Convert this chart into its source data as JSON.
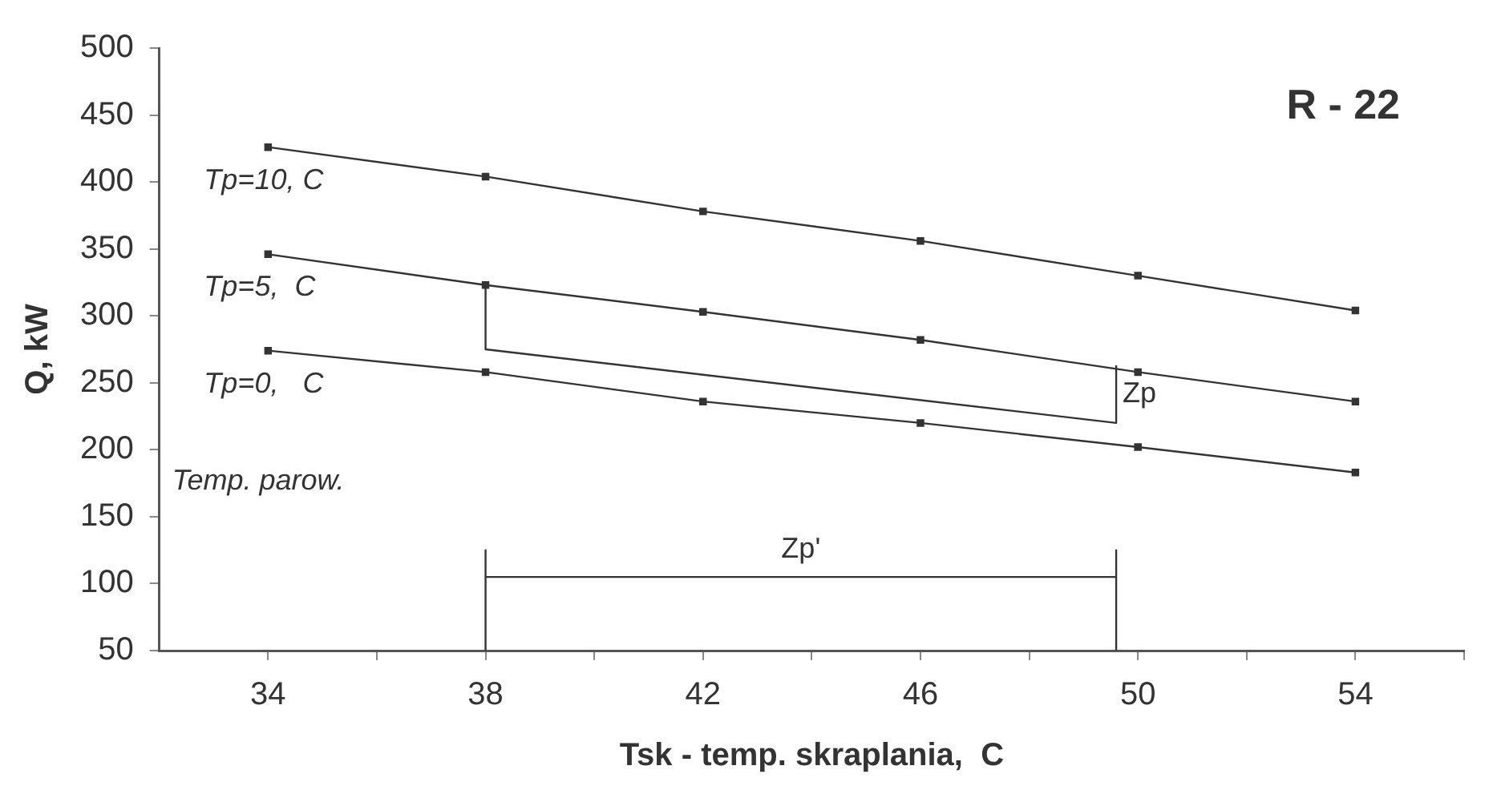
{
  "chart_data": {
    "type": "line",
    "title": "R - 22",
    "xlabel": "Tsk - temp. skraplania,  C",
    "ylabel": "Q, kW",
    "xlim": [
      32,
      56
    ],
    "xticks": [
      34,
      {
        "value": 36,
        "label": null
      },
      38,
      {
        "value": 40,
        "label": null
      },
      42,
      {
        "value": 44,
        "label": null
      },
      46,
      {
        "value": 48,
        "label": null
      },
      50,
      {
        "value": 52,
        "label": null
      },
      54,
      {
        "value": 56,
        "label": null
      }
    ],
    "ylim": [
      50,
      500
    ],
    "yticks": [
      50,
      100,
      150,
      200,
      250,
      300,
      350,
      400,
      450,
      500
    ],
    "grid": false,
    "legend": false,
    "line_style": "solid",
    "series": [
      {
        "name": "Tp=10, C",
        "color": "#333333",
        "marker": "square",
        "x": [
          34,
          38,
          42,
          46,
          50,
          54
        ],
        "values": [
          426,
          404,
          378,
          356,
          330,
          304
        ]
      },
      {
        "name": "Tp=5,  C",
        "color": "#333333",
        "marker": "square",
        "x": [
          34,
          38,
          42,
          46,
          50,
          54
        ],
        "values": [
          346,
          323,
          303,
          282,
          258,
          236
        ]
      },
      {
        "name": "Tp=0,   C",
        "color": "#333333",
        "marker": "square",
        "x": [
          34,
          38,
          42,
          46,
          50,
          54
        ],
        "values": [
          274,
          258,
          236,
          220,
          202,
          183
        ]
      },
      {
        "name": "Zp",
        "color": "#333333",
        "marker": "none",
        "x": [
          38,
          38,
          49.6,
          49.6
        ],
        "values": [
          323,
          275,
          220,
          263
        ]
      },
      {
        "name": "Zp'",
        "color": "#333333",
        "marker": "none",
        "x": [
          38,
          38,
          38,
          49.6,
          49.6,
          49.6
        ],
        "values": [
          50,
          125,
          105,
          105,
          125,
          50
        ]
      }
    ],
    "annotations": [
      "Temp. parow."
    ]
  }
}
